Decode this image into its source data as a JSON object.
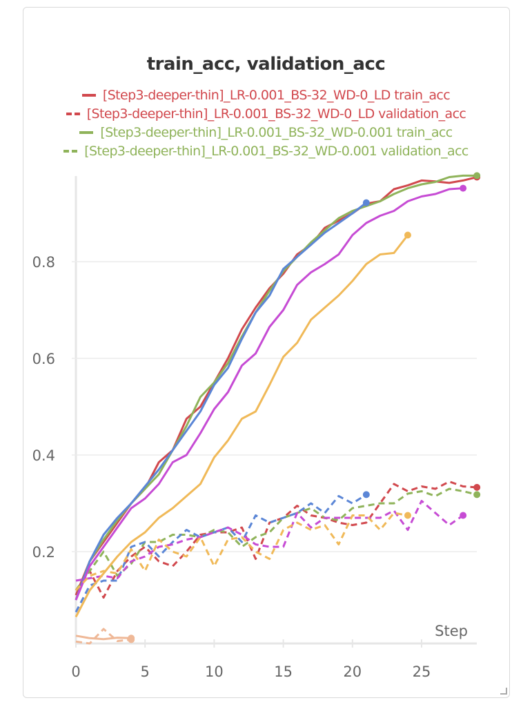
{
  "chart_data": {
    "type": "line",
    "title": "train_acc, validation_acc",
    "xlabel": "Step",
    "ylabel": "",
    "xlim": [
      0,
      29
    ],
    "ylim": [
      0.01,
      1.0
    ],
    "x_ticks": [
      "0",
      "5",
      "10",
      "15",
      "20",
      "25"
    ],
    "y_ticks": [
      "0.2",
      "0.4",
      "0.6",
      "0.8"
    ],
    "grid": true,
    "legend_position": "top",
    "legend": [
      {
        "label": "[Step3-deeper-thin]_LR-0.001_BS-32_WD-0_LD train_acc",
        "color": "#d1484d",
        "dashed": false
      },
      {
        "label": "[Step3-deeper-thin]_LR-0.001_BS-32_WD-0_LD validation_acc",
        "color": "#d1484d",
        "dashed": true
      },
      {
        "label": "[Step3-deeper-thin]_LR-0.001_BS-32_WD-0.001 train_acc",
        "color": "#8fb35a",
        "dashed": false
      },
      {
        "label": "[Step3-deeper-thin]_LR-0.001_BS-32_WD-0.001 validation_acc",
        "color": "#8fb35a",
        "dashed": true
      }
    ],
    "series": [
      {
        "name": "[Step3-deeper-thin]_LR-0.001_BS-32_WD-0_LD train_acc",
        "color": "#d1484d",
        "dashed": false,
        "values": [
          0.11,
          0.18,
          0.22,
          0.26,
          0.3,
          0.33,
          0.385,
          0.41,
          0.475,
          0.5,
          0.55,
          0.6,
          0.66,
          0.705,
          0.745,
          0.775,
          0.815,
          0.835,
          0.87,
          0.885,
          0.9,
          0.92,
          0.925,
          0.95,
          0.958,
          0.968,
          0.966,
          0.963,
          0.968,
          0.975
        ]
      },
      {
        "name": "[Step3-deeper-thin]_LR-0.001_BS-32_WD-0_LD validation_acc",
        "color": "#d1484d",
        "dashed": true,
        "values": [
          0.12,
          0.16,
          0.105,
          0.16,
          0.19,
          0.21,
          0.18,
          0.17,
          0.2,
          0.235,
          0.24,
          0.24,
          0.25,
          0.185,
          0.26,
          0.27,
          0.295,
          0.275,
          0.27,
          0.26,
          0.255,
          0.26,
          0.3,
          0.34,
          0.325,
          0.335,
          0.33,
          0.345,
          0.335,
          0.333
        ]
      },
      {
        "name": "[Step3-deeper-thin]_LR-0.001_BS-32_WD-0.001 train_acc",
        "color": "#8fb35a",
        "dashed": false,
        "values": [
          0.1,
          0.18,
          0.225,
          0.265,
          0.3,
          0.33,
          0.36,
          0.41,
          0.46,
          0.52,
          0.55,
          0.59,
          0.645,
          0.695,
          0.74,
          0.78,
          0.81,
          0.84,
          0.865,
          0.89,
          0.905,
          0.915,
          0.925,
          0.94,
          0.952,
          0.96,
          0.965,
          0.975,
          0.978,
          0.978
        ]
      },
      {
        "name": "[Step3-deeper-thin]_LR-0.001_BS-32_WD-0.001 validation_acc",
        "color": "#8fb35a",
        "dashed": true,
        "values": [
          0.12,
          0.16,
          0.2,
          0.15,
          0.175,
          0.22,
          0.22,
          0.235,
          0.235,
          0.23,
          0.245,
          0.24,
          0.21,
          0.23,
          0.24,
          0.27,
          0.28,
          0.29,
          0.27,
          0.265,
          0.29,
          0.295,
          0.3,
          0.3,
          0.32,
          0.325,
          0.315,
          0.33,
          0.325,
          0.318
        ]
      },
      {
        "color": "#5b86d6",
        "dashed": false,
        "values": [
          0.1,
          0.18,
          0.235,
          0.27,
          0.3,
          0.335,
          0.37,
          0.41,
          0.45,
          0.49,
          0.545,
          0.58,
          0.64,
          0.695,
          0.73,
          0.785,
          0.81,
          0.835,
          0.86,
          0.88,
          0.9,
          0.922
        ]
      },
      {
        "color": "#5b86d6",
        "dashed": true,
        "values": [
          0.075,
          0.13,
          0.14,
          0.14,
          0.21,
          0.22,
          0.19,
          0.22,
          0.245,
          0.23,
          0.24,
          0.25,
          0.22,
          0.275,
          0.26,
          0.27,
          0.28,
          0.3,
          0.28,
          0.315,
          0.3,
          0.318
        ]
      },
      {
        "color": "#c64bd4",
        "dashed": false,
        "values": [
          0.1,
          0.17,
          0.21,
          0.25,
          0.29,
          0.31,
          0.34,
          0.385,
          0.4,
          0.445,
          0.495,
          0.53,
          0.585,
          0.61,
          0.665,
          0.7,
          0.752,
          0.778,
          0.795,
          0.815,
          0.855,
          0.88,
          0.895,
          0.905,
          0.925,
          0.935,
          0.94,
          0.95,
          0.952
        ]
      },
      {
        "color": "#c64bd4",
        "dashed": true,
        "values": [
          0.14,
          0.145,
          0.15,
          0.145,
          0.18,
          0.19,
          0.21,
          0.215,
          0.225,
          0.23,
          0.24,
          0.25,
          0.235,
          0.215,
          0.21,
          0.21,
          0.28,
          0.25,
          0.27,
          0.27,
          0.27,
          0.27,
          0.27,
          0.285,
          0.245,
          0.305,
          0.28,
          0.255,
          0.275
        ]
      },
      {
        "color": "#f0b958",
        "dashed": false,
        "values": [
          0.065,
          0.12,
          0.155,
          0.19,
          0.22,
          0.24,
          0.27,
          0.29,
          0.315,
          0.34,
          0.395,
          0.43,
          0.475,
          0.49,
          0.545,
          0.603,
          0.632,
          0.68,
          0.705,
          0.73,
          0.76,
          0.795,
          0.815,
          0.818,
          0.855
        ]
      },
      {
        "color": "#f0b958",
        "dashed": true,
        "values": [
          0.12,
          0.15,
          0.16,
          0.155,
          0.205,
          0.16,
          0.225,
          0.2,
          0.19,
          0.23,
          0.17,
          0.225,
          0.23,
          0.2,
          0.185,
          0.245,
          0.26,
          0.245,
          0.255,
          0.215,
          0.275,
          0.275,
          0.245,
          0.28,
          0.275
        ]
      },
      {
        "color": "#efb897",
        "dashed": false,
        "values": [
          0.026,
          0.021,
          0.019,
          0.022,
          0.021
        ]
      },
      {
        "color": "#efb897",
        "dashed": true,
        "values": [
          0.014,
          0.01,
          0.04,
          0.015,
          0.018
        ]
      }
    ]
  }
}
